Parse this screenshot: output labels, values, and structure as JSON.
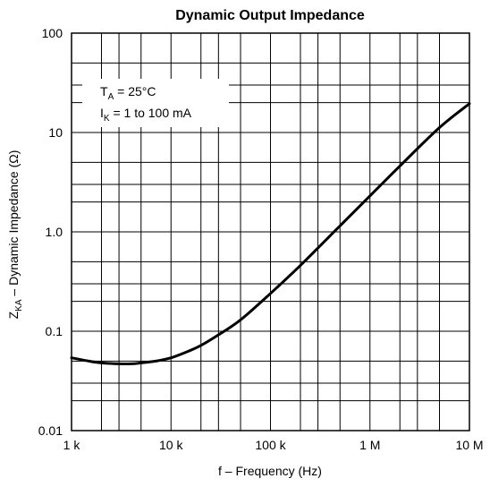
{
  "chart_data": {
    "type": "line",
    "title": "Dynamic Output Impedance",
    "xlabel": "f – Frequency (Hz)",
    "ylabel": {
      "prefix": "Z",
      "subscript": "KA",
      "suffix": " – Dynamic Impedance (Ω)"
    },
    "x_scale": "log",
    "y_scale": "log",
    "xlim": [
      1000,
      10000000
    ],
    "ylim": [
      0.01,
      100
    ],
    "grid": true,
    "x_ticks": [
      {
        "value": 1000,
        "label": "1 k"
      },
      {
        "value": 10000,
        "label": "10 k"
      },
      {
        "value": 100000,
        "label": "100 k"
      },
      {
        "value": 1000000,
        "label": "1 M"
      },
      {
        "value": 10000000,
        "label": "10 M"
      }
    ],
    "y_ticks": [
      {
        "value": 0.01,
        "label": "0.01"
      },
      {
        "value": 0.1,
        "label": "0.1"
      },
      {
        "value": 1,
        "label": "1.0"
      },
      {
        "value": 10,
        "label": "10"
      },
      {
        "value": 100,
        "label": "100"
      }
    ],
    "x_grid": [
      1000,
      2000,
      3000,
      5000,
      10000,
      20000,
      30000,
      50000,
      100000,
      200000,
      300000,
      500000,
      1000000,
      2000000,
      3000000,
      5000000,
      10000000
    ],
    "y_grid": [
      0.01,
      0.02,
      0.03,
      0.05,
      0.1,
      0.2,
      0.3,
      0.5,
      1,
      2,
      3,
      5,
      10,
      20,
      30,
      50,
      100
    ],
    "annotations": [
      {
        "prefix": "T",
        "subscript": "A",
        "suffix": " = 25°C"
      },
      {
        "prefix": "I",
        "subscript": "K",
        "suffix": " = 1 to 100 mA"
      }
    ],
    "series": [
      {
        "x": [
          1000,
          1500,
          2000,
          3000,
          4000,
          5000,
          7000,
          10000,
          15000,
          20000,
          30000,
          50000,
          100000,
          200000,
          500000,
          1000000,
          2000000,
          5000000,
          10000000
        ],
        "y": [
          0.054,
          0.05,
          0.048,
          0.047,
          0.047,
          0.048,
          0.05,
          0.054,
          0.063,
          0.072,
          0.092,
          0.13,
          0.24,
          0.46,
          1.15,
          2.3,
          4.6,
          11.2,
          19.5
        ]
      }
    ],
    "line_color": "#000000"
  }
}
